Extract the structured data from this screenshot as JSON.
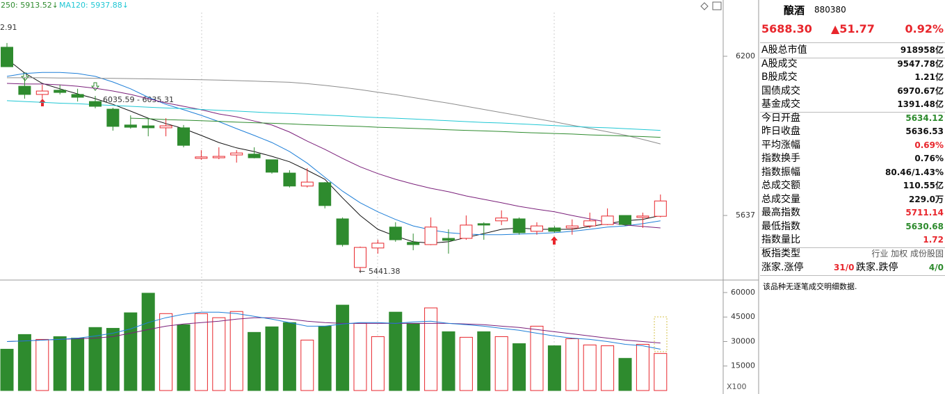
{
  "chart_data": [
    {
      "type": "candlestick",
      "legend": [
        "250: 5913.52↓",
        "MA120: 5937.88↓"
      ],
      "annotations": [
        "2.91",
        "6035.59 - 6035.31",
        "5441.38"
      ],
      "ylim": [
        5416,
        6399
      ],
      "yticks": [
        6200,
        5637
      ],
      "up_color": "#e8262c",
      "down_color": "#2e8b2e",
      "open": [
        6232,
        6094,
        6065,
        6080,
        6065,
        6040,
        6013,
        5957,
        5954,
        5947,
        5947,
        5839,
        5841,
        5851,
        5854,
        5834,
        5787,
        5741,
        5753,
        5625,
        5453,
        5522,
        5596,
        5542,
        5534,
        5556,
        5556,
        5608,
        5618,
        5625,
        5581,
        5593,
        5593,
        5600,
        5605,
        5637,
        5630,
        5634.12
      ],
      "high": [
        6247,
        6124,
        6099,
        6099,
        6085,
        6060,
        6018,
        5991,
        5981,
        5981,
        5957,
        5868,
        5878,
        5868,
        5878,
        5834,
        5797,
        5804,
        5755,
        5630,
        5527,
        5551,
        5613,
        5573,
        5630,
        5588,
        5637,
        5613,
        5655,
        5630,
        5613,
        5600,
        5623,
        5647,
        5662,
        5637,
        5647,
        5711.14
      ],
      "low": [
        6163,
        6050,
        6050,
        6065,
        6040,
        6016,
        5937,
        5944,
        5917,
        5917,
        5878,
        5834,
        5836,
        5824,
        5839,
        5785,
        5736,
        5736,
        5662,
        5527,
        5441.38,
        5502,
        5544,
        5514,
        5532,
        5502,
        5551,
        5551,
        5603,
        5569,
        5569,
        5576,
        5569,
        5593,
        5603,
        5600,
        5593,
        5630.68
      ],
      "close": [
        6163,
        6065,
        6077,
        6072,
        6055,
        6023,
        5952,
        5949,
        5947,
        5954,
        5885,
        5844,
        5846,
        5858,
        5841,
        5790,
        5741,
        5755,
        5672,
        5534,
        5524,
        5539,
        5551,
        5534,
        5596,
        5549,
        5603,
        5603,
        5628,
        5576,
        5600,
        5581,
        5600,
        5618,
        5635,
        5605,
        5635,
        5688.3
      ],
      "series": [
        {
          "color": "#111111",
          "values": [
            6190,
            6141,
            6104,
            6085,
            6067,
            6050,
            6030,
            6006,
            5981,
            5962,
            5944,
            5920,
            5895,
            5876,
            5863,
            5846,
            5827,
            5797,
            5765,
            5699,
            5637,
            5588,
            5564,
            5544,
            5539,
            5544,
            5559,
            5573,
            5588,
            5593,
            5588,
            5588,
            5588,
            5598,
            5608,
            5618,
            5623,
            5637
          ]
        },
        {
          "color": "#1e7fd8",
          "values": [
            6129,
            6139,
            6143,
            6143,
            6139,
            6129,
            6109,
            6085,
            6055,
            6030,
            6011,
            5991,
            5969,
            5944,
            5920,
            5895,
            5863,
            5822,
            5772,
            5723,
            5682,
            5650,
            5623,
            5600,
            5586,
            5576,
            5571,
            5569,
            5569,
            5571,
            5573,
            5576,
            5581,
            5588,
            5596,
            5600,
            5608,
            5618
          ]
        },
        {
          "color": "#7a1f7a",
          "values": [
            6104,
            6102,
            6102,
            6099,
            6094,
            6087,
            6077,
            6065,
            6050,
            6035,
            6023,
            6011,
            5996,
            5986,
            5971,
            5957,
            5932,
            5900,
            5871,
            5839,
            5809,
            5785,
            5765,
            5748,
            5733,
            5721,
            5706,
            5694,
            5682,
            5669,
            5659,
            5650,
            5637,
            5625,
            5613,
            5603,
            5598,
            5593
          ]
        },
        {
          "color": "#8c8c8c",
          "values": [
            6124,
            6124,
            6124,
            6123,
            6123,
            6122,
            6122,
            6121,
            6120,
            6119,
            6118,
            6117,
            6116,
            6114,
            6112,
            6110,
            6108,
            6103,
            6097,
            6090,
            6082,
            6073,
            6064,
            6054,
            6044,
            6034,
            6023,
            6012,
            6001,
            5990,
            5979,
            5968,
            5956,
            5945,
            5933,
            5921,
            5906,
            5890
          ]
        },
        {
          "color": "#1fc7d4",
          "values": [
            6043,
            6040,
            6037,
            6034,
            6032,
            6029,
            6026,
            6023,
            6020,
            6017,
            6015,
            6012,
            6009,
            6006,
            6003,
            6000,
            5998,
            5995,
            5992,
            5989,
            5986,
            5983,
            5981,
            5978,
            5975,
            5972,
            5969,
            5966,
            5964,
            5961,
            5958,
            5955,
            5952,
            5949,
            5947,
            5944,
            5941,
            5937.88
          ]
        },
        {
          "color": "#2e8b2e",
          "values": [
            null,
            null,
            null,
            null,
            null,
            null,
            null,
            5981,
            5979,
            5976,
            5974,
            5972,
            5970,
            5967,
            5965,
            5963,
            5961,
            5958,
            5956,
            5954,
            5952,
            5949,
            5947,
            5945,
            5943,
            5940,
            5938,
            5936,
            5934,
            5931,
            5929,
            5927,
            5925,
            5922,
            5920,
            5918,
            5916,
            5913.52
          ]
        }
      ]
    },
    {
      "type": "bar",
      "unit_label": "X100",
      "ylim": [
        0,
        66800
      ],
      "yticks": [
        15000,
        30000,
        45000,
        60000
      ],
      "values": [
        25300,
        34300,
        31300,
        33000,
        32100,
        38600,
        38100,
        47600,
        59600,
        47100,
        40300,
        47100,
        44600,
        48400,
        35600,
        39000,
        41600,
        30900,
        39400,
        52300,
        41100,
        33000,
        48000,
        41100,
        50600,
        36000,
        32600,
        36000,
        33000,
        28700,
        39400,
        27400,
        31700,
        27900,
        27400,
        19700,
        28300,
        22700
      ],
      "series": [
        {
          "color": "#7a1f7a",
          "values": [
            30000,
            30400,
            30900,
            31300,
            31700,
            32100,
            33000,
            35100,
            37300,
            39400,
            40700,
            41600,
            42400,
            43700,
            44600,
            44600,
            43700,
            42400,
            41600,
            41100,
            41100,
            41100,
            41100,
            41100,
            41100,
            41100,
            40700,
            40300,
            39400,
            38600,
            37300,
            36000,
            34700,
            33400,
            32100,
            30900,
            30000,
            29100
          ]
        },
        {
          "color": "#1e7fd8",
          "values": [
            30000,
            30400,
            30900,
            31300,
            32100,
            33400,
            35100,
            37700,
            41600,
            44600,
            46700,
            48000,
            48000,
            47100,
            45400,
            43700,
            41600,
            39400,
            39400,
            40700,
            41600,
            41600,
            41100,
            42000,
            42400,
            41100,
            40300,
            39400,
            38100,
            36900,
            35100,
            33400,
            32100,
            31300,
            30000,
            28300,
            27400,
            25300
          ]
        }
      ]
    }
  ],
  "panel": {
    "name": "酿酒",
    "code": "880380",
    "price": "5688.30",
    "change": "▲51.77",
    "change_pct": "0.92%",
    "rows": [
      [
        "A股总市值",
        "918958亿"
      ],
      [
        "A股成交",
        "9547.78亿"
      ],
      [
        "B股成交",
        "1.21亿"
      ],
      [
        "国债成交",
        "6970.67亿"
      ],
      [
        "基金成交",
        "1391.48亿"
      ],
      [
        "今日开盘",
        "5634.12"
      ],
      [
        "昨日收盘",
        "5636.53"
      ],
      [
        "平均涨幅",
        "0.69%"
      ],
      [
        "指数换手",
        "0.76%"
      ],
      [
        "指数振幅",
        "80.46/1.43%"
      ],
      [
        "总成交额",
        "110.55亿"
      ],
      [
        "总成交量",
        "229.0万"
      ],
      [
        "最高指数",
        "5711.14"
      ],
      [
        "最低指数",
        "5630.68"
      ],
      [
        "指数量比",
        "1.72"
      ],
      [
        "板指类型",
        "行业 加权 成份股固"
      ]
    ],
    "limits": [
      "涨家.涨停",
      "31/0",
      "跌家.跌停",
      "4/0"
    ],
    "note": "该品种无逐笔成交明细数据."
  }
}
